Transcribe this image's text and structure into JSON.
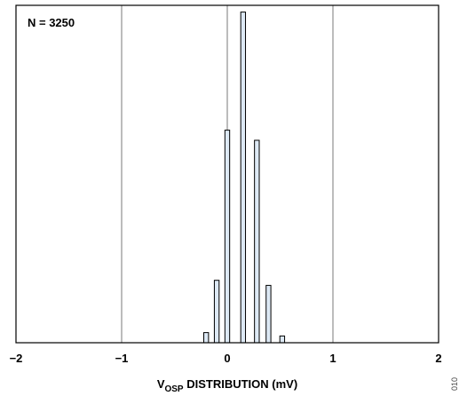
{
  "chart_data": {
    "type": "bar",
    "annotation": "N = 3250",
    "xlabel": {
      "main": "V",
      "subscript": "OSP",
      "rest": " DISTRIBUTION (mV)"
    },
    "ylabel": "",
    "xlim": [
      -2,
      2
    ],
    "ylim": [
      0,
      1
    ],
    "x_ticks": [
      "−2",
      "−1",
      "0",
      "1",
      "2"
    ],
    "x_tick_values": [
      -2,
      -1,
      0,
      1,
      2
    ],
    "grid": "vertical",
    "bar_width": 0.045,
    "x": [
      -0.2,
      -0.1,
      0.0,
      0.15,
      0.28,
      0.39,
      0.52
    ],
    "values": [
      0.03,
      0.185,
      0.63,
      0.98,
      0.6,
      0.17,
      0.02
    ],
    "colors": {
      "bar_fill": "#dde9f5",
      "bar_stroke": "#000000",
      "grid": "#7a7a7a"
    }
  },
  "figure_id": "010"
}
